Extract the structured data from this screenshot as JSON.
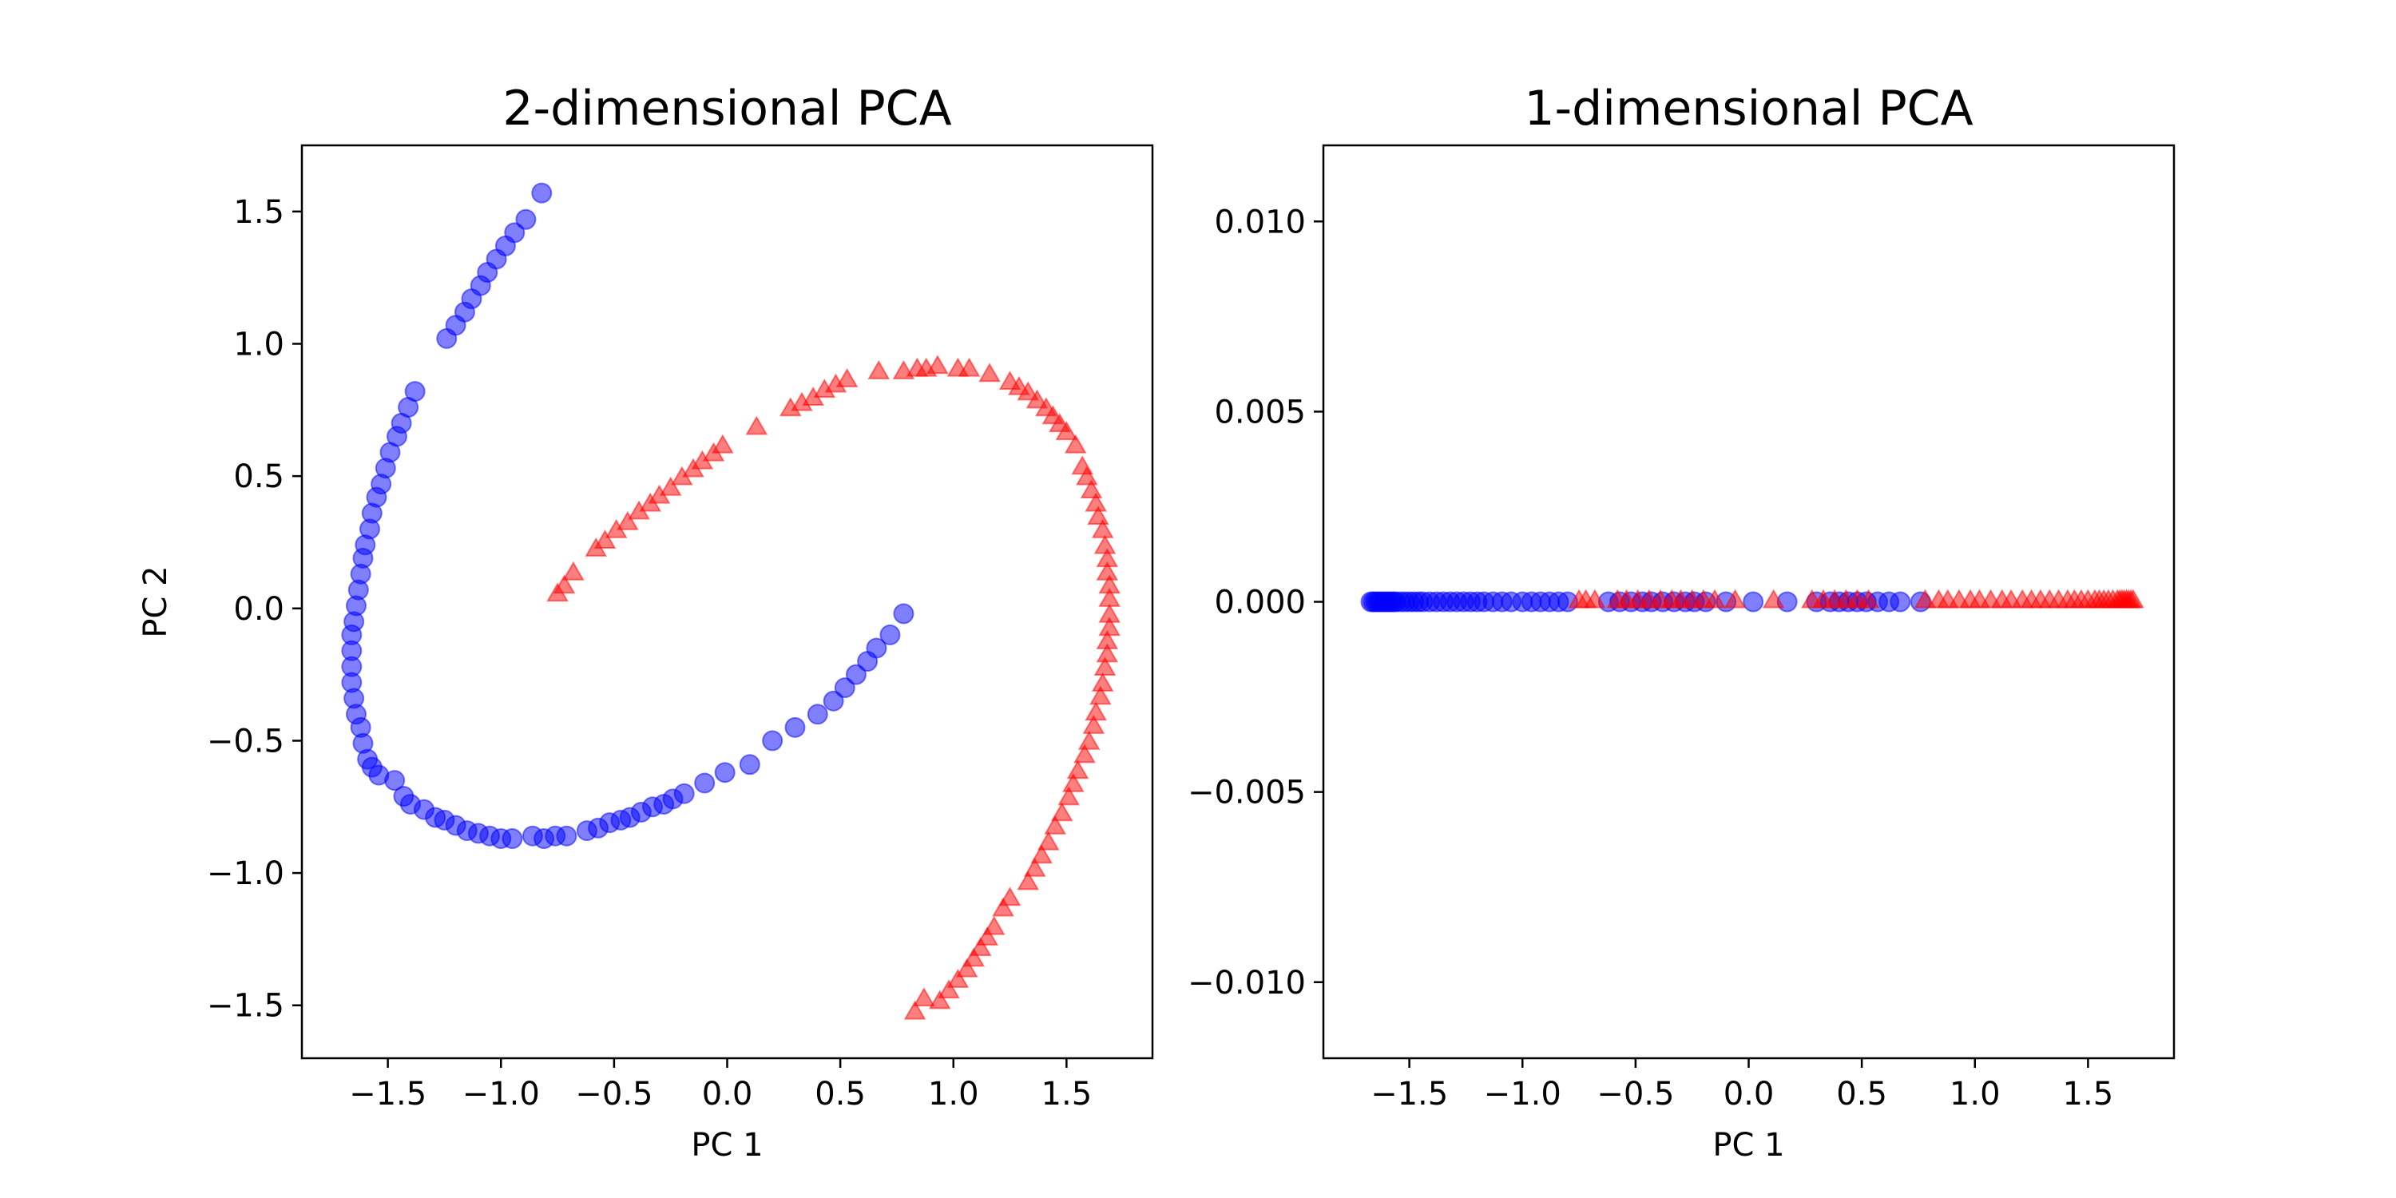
{
  "colors": {
    "class_a": "#0000ff",
    "class_b": "#ff0000"
  },
  "chart_data": [
    {
      "type": "scatter",
      "title": "2-dimensional PCA",
      "xlabel": "PC 1",
      "ylabel": "PC 2",
      "xlim": [
        -1.88,
        1.88
      ],
      "ylim": [
        -1.7,
        1.75
      ],
      "xticks": [
        -1.5,
        -1.0,
        -0.5,
        0.0,
        0.5,
        1.0,
        1.5
      ],
      "xtick_labels": [
        "−1.5",
        "−1.0",
        "−0.5",
        "0.0",
        "0.5",
        "1.0",
        "1.5"
      ],
      "yticks": [
        -1.5,
        -1.0,
        -0.5,
        0.0,
        0.5,
        1.0,
        1.5
      ],
      "ytick_labels": [
        "−1.5",
        "−1.0",
        "−0.5",
        "0.0",
        "0.5",
        "1.0",
        "1.5"
      ],
      "grid": false,
      "series": [
        {
          "marker": "circle",
          "color": "#0000ff",
          "points": [
            [
              -0.82,
              1.57
            ],
            [
              -0.89,
              1.47
            ],
            [
              -0.94,
              1.42
            ],
            [
              -0.98,
              1.37
            ],
            [
              -1.02,
              1.32
            ],
            [
              -1.06,
              1.27
            ],
            [
              -1.09,
              1.22
            ],
            [
              -1.13,
              1.17
            ],
            [
              -1.16,
              1.12
            ],
            [
              -1.2,
              1.07
            ],
            [
              -1.24,
              1.02
            ],
            [
              -1.38,
              0.82
            ],
            [
              -1.41,
              0.76
            ],
            [
              -1.44,
              0.7
            ],
            [
              -1.46,
              0.65
            ],
            [
              -1.49,
              0.59
            ],
            [
              -1.51,
              0.53
            ],
            [
              -1.53,
              0.47
            ],
            [
              -1.55,
              0.42
            ],
            [
              -1.57,
              0.36
            ],
            [
              -1.58,
              0.3
            ],
            [
              -1.6,
              0.24
            ],
            [
              -1.61,
              0.19
            ],
            [
              -1.62,
              0.13
            ],
            [
              -1.63,
              0.07
            ],
            [
              -1.64,
              0.01
            ],
            [
              -1.65,
              -0.05
            ],
            [
              -1.66,
              -0.1
            ],
            [
              -1.66,
              -0.16
            ],
            [
              -1.66,
              -0.22
            ],
            [
              -1.66,
              -0.28
            ],
            [
              -1.65,
              -0.34
            ],
            [
              -1.64,
              -0.4
            ],
            [
              -1.62,
              -0.45
            ],
            [
              -1.61,
              -0.51
            ],
            [
              -1.59,
              -0.57
            ],
            [
              -1.57,
              -0.6
            ],
            [
              -1.54,
              -0.63
            ],
            [
              -1.47,
              -0.65
            ],
            [
              -1.43,
              -0.71
            ],
            [
              -1.4,
              -0.74
            ],
            [
              -1.34,
              -0.76
            ],
            [
              -1.29,
              -0.79
            ],
            [
              -1.25,
              -0.8
            ],
            [
              -1.2,
              -0.82
            ],
            [
              -1.15,
              -0.84
            ],
            [
              -1.1,
              -0.85
            ],
            [
              -1.05,
              -0.86
            ],
            [
              -1.0,
              -0.87
            ],
            [
              -0.95,
              -0.87
            ],
            [
              -0.86,
              -0.86
            ],
            [
              -0.81,
              -0.87
            ],
            [
              -0.76,
              -0.86
            ],
            [
              -0.71,
              -0.86
            ],
            [
              -0.62,
              -0.84
            ],
            [
              -0.57,
              -0.83
            ],
            [
              -0.52,
              -0.81
            ],
            [
              -0.47,
              -0.8
            ],
            [
              -0.43,
              -0.79
            ],
            [
              -0.38,
              -0.77
            ],
            [
              -0.33,
              -0.75
            ],
            [
              -0.28,
              -0.74
            ],
            [
              -0.24,
              -0.72
            ],
            [
              -0.19,
              -0.7
            ],
            [
              -0.1,
              -0.66
            ],
            [
              -0.01,
              -0.62
            ],
            [
              0.1,
              -0.59
            ],
            [
              0.2,
              -0.5
            ],
            [
              0.3,
              -0.45
            ],
            [
              0.4,
              -0.4
            ],
            [
              0.47,
              -0.35
            ],
            [
              0.52,
              -0.3
            ],
            [
              0.57,
              -0.25
            ],
            [
              0.62,
              -0.2
            ],
            [
              0.66,
              -0.15
            ],
            [
              0.72,
              -0.1
            ],
            [
              0.78,
              -0.02
            ]
          ]
        },
        {
          "marker": "triangle",
          "color": "#ff0000",
          "points": [
            [
              -0.75,
              0.05
            ],
            [
              -0.72,
              0.08
            ],
            [
              -0.68,
              0.13
            ],
            [
              -0.58,
              0.22
            ],
            [
              -0.54,
              0.25
            ],
            [
              -0.49,
              0.29
            ],
            [
              -0.44,
              0.32
            ],
            [
              -0.39,
              0.36
            ],
            [
              -0.34,
              0.39
            ],
            [
              -0.3,
              0.42
            ],
            [
              -0.25,
              0.45
            ],
            [
              -0.2,
              0.49
            ],
            [
              -0.15,
              0.52
            ],
            [
              -0.11,
              0.55
            ],
            [
              -0.06,
              0.58
            ],
            [
              -0.02,
              0.61
            ],
            [
              0.13,
              0.68
            ],
            [
              0.28,
              0.75
            ],
            [
              0.33,
              0.77
            ],
            [
              0.38,
              0.79
            ],
            [
              0.43,
              0.82
            ],
            [
              0.48,
              0.84
            ],
            [
              0.53,
              0.86
            ],
            [
              0.67,
              0.89
            ],
            [
              0.78,
              0.89
            ],
            [
              0.84,
              0.9
            ],
            [
              0.88,
              0.9
            ],
            [
              0.93,
              0.91
            ],
            [
              1.02,
              0.9
            ],
            [
              1.07,
              0.9
            ],
            [
              1.16,
              0.88
            ],
            [
              1.25,
              0.85
            ],
            [
              1.29,
              0.83
            ],
            [
              1.33,
              0.81
            ],
            [
              1.37,
              0.78
            ],
            [
              1.41,
              0.75
            ],
            [
              1.44,
              0.72
            ],
            [
              1.47,
              0.69
            ],
            [
              1.5,
              0.66
            ],
            [
              1.54,
              0.61
            ],
            [
              1.57,
              0.53
            ],
            [
              1.59,
              0.49
            ],
            [
              1.61,
              0.44
            ],
            [
              1.63,
              0.39
            ],
            [
              1.64,
              0.34
            ],
            [
              1.66,
              0.29
            ],
            [
              1.67,
              0.23
            ],
            [
              1.68,
              0.18
            ],
            [
              1.68,
              0.13
            ],
            [
              1.69,
              0.08
            ],
            [
              1.69,
              0.03
            ],
            [
              1.69,
              -0.03
            ],
            [
              1.69,
              -0.08
            ],
            [
              1.68,
              -0.13
            ],
            [
              1.68,
              -0.18
            ],
            [
              1.67,
              -0.23
            ],
            [
              1.66,
              -0.29
            ],
            [
              1.65,
              -0.34
            ],
            [
              1.63,
              -0.4
            ],
            [
              1.62,
              -0.45
            ],
            [
              1.6,
              -0.51
            ],
            [
              1.58,
              -0.56
            ],
            [
              1.55,
              -0.62
            ],
            [
              1.53,
              -0.67
            ],
            [
              1.51,
              -0.72
            ],
            [
              1.48,
              -0.78
            ],
            [
              1.45,
              -0.83
            ],
            [
              1.42,
              -0.89
            ],
            [
              1.39,
              -0.94
            ],
            [
              1.36,
              -0.99
            ],
            [
              1.33,
              -1.04
            ],
            [
              1.25,
              -1.1
            ],
            [
              1.22,
              -1.14
            ],
            [
              1.18,
              -1.21
            ],
            [
              1.15,
              -1.25
            ],
            [
              1.12,
              -1.29
            ],
            [
              1.09,
              -1.33
            ],
            [
              1.06,
              -1.37
            ],
            [
              1.02,
              -1.41
            ],
            [
              0.98,
              -1.45
            ],
            [
              0.94,
              -1.49
            ],
            [
              0.87,
              -1.48
            ],
            [
              0.83,
              -1.53
            ]
          ]
        }
      ]
    },
    {
      "type": "scatter",
      "title": "1-dimensional PCA",
      "xlabel": "PC 1",
      "ylabel": "",
      "xlim": [
        -1.88,
        1.88
      ],
      "ylim": [
        -0.012,
        0.012
      ],
      "xticks": [
        -1.5,
        -1.0,
        -0.5,
        0.0,
        0.5,
        1.0,
        1.5
      ],
      "xtick_labels": [
        "−1.5",
        "−1.0",
        "−0.5",
        "0.0",
        "0.5",
        "1.0",
        "1.5"
      ],
      "yticks": [
        0.01,
        0.005,
        0.0,
        -0.005,
        -0.01
      ],
      "ytick_labels": [
        "0.010",
        "0.005",
        "0.000",
        "−0.005",
        "−0.010"
      ],
      "grid": false,
      "series": [
        {
          "marker": "circle",
          "color": "#0000ff",
          "x": [
            -1.67,
            -1.66,
            -1.65,
            -1.64,
            -1.63,
            -1.62,
            -1.61,
            -1.6,
            -1.59,
            -1.58,
            -1.57,
            -1.56,
            -1.54,
            -1.52,
            -1.5,
            -1.48,
            -1.46,
            -1.44,
            -1.41,
            -1.38,
            -1.35,
            -1.32,
            -1.29,
            -1.26,
            -1.23,
            -1.2,
            -1.17,
            -1.13,
            -1.09,
            -1.05,
            -1.0,
            -0.96,
            -0.92,
            -0.88,
            -0.84,
            -0.8,
            -0.62,
            -0.57,
            -0.52,
            -0.47,
            -0.43,
            -0.38,
            -0.33,
            -0.28,
            -0.24,
            -0.19,
            -0.1,
            0.02,
            0.17,
            0.3,
            0.36,
            0.4,
            0.44,
            0.48,
            0.52,
            0.57,
            0.62,
            0.67,
            0.76
          ],
          "y": 0.0
        },
        {
          "marker": "triangle",
          "color": "#ff0000",
          "x": [
            -0.75,
            -0.72,
            -0.68,
            -0.58,
            -0.54,
            -0.49,
            -0.44,
            -0.39,
            -0.34,
            -0.3,
            -0.25,
            -0.2,
            -0.15,
            -0.06,
            0.11,
            0.28,
            0.33,
            0.38,
            0.43,
            0.48,
            0.53,
            0.78,
            0.84,
            0.88,
            0.93,
            0.98,
            1.02,
            1.07,
            1.12,
            1.16,
            1.21,
            1.25,
            1.29,
            1.33,
            1.37,
            1.41,
            1.44,
            1.47,
            1.5,
            1.53,
            1.55,
            1.57,
            1.59,
            1.61,
            1.63,
            1.64,
            1.65,
            1.66,
            1.67,
            1.68,
            1.69,
            1.7
          ],
          "y": 0.0
        }
      ]
    }
  ]
}
